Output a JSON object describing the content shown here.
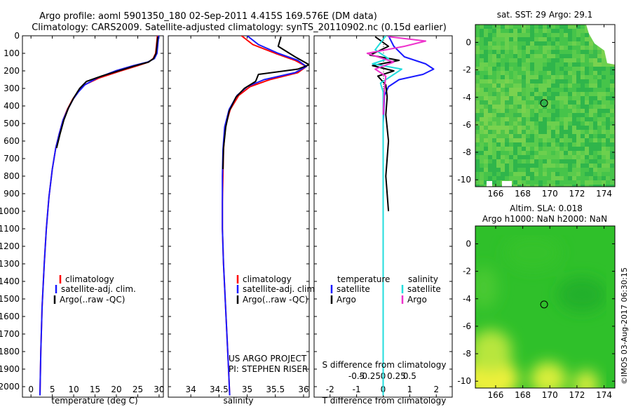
{
  "header": {
    "title_line1": "Argo profile: aoml 5901350_180 02-Sep-2011 4.415S 169.576E (DM data)",
    "title_line2": "Climatology: CARS2009. Satellite-adjusted climatology: synTS_20110902.nc (0.15d earlier)"
  },
  "colors": {
    "climatology": "#ff0000",
    "satellite": "#1a1aff",
    "argo": "#000000",
    "satellite_salinity": "#22dddd",
    "argo_salinity": "#ee33cc"
  },
  "depth_axis": {
    "min": 0,
    "max": 2060,
    "ticks": [
      0,
      100,
      200,
      300,
      400,
      500,
      600,
      700,
      800,
      900,
      1000,
      1100,
      1200,
      1300,
      1400,
      1500,
      1600,
      1700,
      1800,
      1900,
      2000
    ]
  },
  "legend": {
    "climatology": "climatology",
    "satellite_adj": "satellite-adj. clim.",
    "argo_raw": "Argo(..raw -QC)"
  },
  "diff_legend": {
    "temperature": "temperature",
    "salinity": "salinity",
    "satellite": "satellite",
    "argo": "Argo"
  },
  "project": {
    "line1": "US ARGO PROJECT",
    "line2": "PI: STEPHEN RISER"
  },
  "chart_data": [
    {
      "type": "line",
      "name": "temperature-profile",
      "xlabel": "temperature (deg C)",
      "xlim": [
        -2,
        31
      ],
      "xticks": [
        0,
        5,
        10,
        15,
        20,
        25,
        30
      ],
      "ylim": [
        2060,
        0
      ],
      "series": [
        {
          "name": "climatology",
          "color": "#ff0000",
          "x": [
            29.6,
            29.4,
            29.2,
            28.6,
            27.5,
            25,
            21,
            16,
            12.5,
            11,
            9.8,
            8.5,
            7.5,
            6.6,
            5.8,
            5,
            4.2,
            3.6,
            3.1,
            2.6,
            2.3,
            2.1
          ],
          "y": [
            0,
            50,
            100,
            130,
            150,
            170,
            200,
            240,
            280,
            320,
            360,
            420,
            480,
            560,
            640,
            760,
            920,
            1100,
            1300,
            1550,
            1800,
            2050
          ]
        },
        {
          "name": "satellite-adj. clim.",
          "color": "#1a1aff",
          "x": [
            29.9,
            29.7,
            29.5,
            28.9,
            27.3,
            24,
            19.8,
            15.5,
            12.6,
            11.1,
            9.9,
            8.6,
            7.5,
            6.6,
            5.8,
            5,
            4.2,
            3.6,
            3.1,
            2.6,
            2.3,
            2.1
          ],
          "y": [
            0,
            50,
            100,
            130,
            150,
            170,
            200,
            240,
            280,
            320,
            360,
            420,
            480,
            560,
            640,
            760,
            920,
            1100,
            1300,
            1550,
            1800,
            2050
          ]
        },
        {
          "name": "Argo(..raw -QC)",
          "color": "#000000",
          "x": [
            29.7,
            29.5,
            29.3,
            28.7,
            27.5,
            24.5,
            20.5,
            16.5,
            13,
            11.4,
            10.1,
            8.8,
            7.7,
            6.8,
            6
          ],
          "y": [
            5,
            50,
            100,
            130,
            150,
            170,
            200,
            230,
            260,
            300,
            350,
            410,
            480,
            560,
            640
          ]
        }
      ]
    },
    {
      "type": "line",
      "name": "salinity-profile",
      "xlabel": "salinity",
      "xlim": [
        33.6,
        36.1
      ],
      "xticks": [
        34,
        34.5,
        35,
        35.5,
        36
      ],
      "ylim": [
        2060,
        0
      ],
      "series": [
        {
          "name": "climatology",
          "color": "#ff0000",
          "x": [
            34.9,
            35.1,
            35.5,
            35.85,
            36.05,
            35.9,
            35.4,
            35.05,
            34.85,
            34.7,
            34.61,
            34.58,
            34.57,
            34.56,
            34.56,
            34.58,
            34.61,
            34.64,
            34.67,
            34.69
          ],
          "y": [
            0,
            50,
            100,
            140,
            175,
            210,
            250,
            290,
            340,
            420,
            520,
            650,
            800,
            950,
            1100,
            1300,
            1500,
            1700,
            1900,
            2050
          ]
        },
        {
          "name": "satellite-adj. clim.",
          "color": "#1a1aff",
          "x": [
            35.0,
            35.2,
            35.55,
            35.9,
            36.05,
            35.85,
            35.3,
            35.0,
            34.82,
            34.68,
            34.6,
            34.57,
            34.56,
            34.56,
            34.56,
            34.58,
            34.61,
            34.64,
            34.67,
            34.69
          ],
          "y": [
            0,
            50,
            100,
            140,
            175,
            210,
            250,
            290,
            340,
            420,
            520,
            650,
            800,
            950,
            1100,
            1300,
            1500,
            1700,
            1900,
            2050
          ]
        },
        {
          "name": "Argo(..raw -QC)",
          "color": "#000000",
          "x": [
            35.6,
            35.55,
            35.85,
            36.1,
            35.9,
            35.2,
            35.15,
            34.95,
            34.8,
            34.68,
            34.62,
            34.58,
            34.57
          ],
          "y": [
            5,
            60,
            120,
            165,
            190,
            220,
            260,
            300,
            350,
            430,
            520,
            640,
            760
          ]
        }
      ]
    },
    {
      "type": "line",
      "name": "difference-profile",
      "xlabel": "T difference from climatology",
      "x2label": "S difference from climatology",
      "xlim": [
        -2.6,
        2.6
      ],
      "xticks": [
        -2,
        -1,
        0,
        1,
        2
      ],
      "s_ticks": [
        -0.5,
        -0.25,
        0,
        0.25,
        0.5
      ],
      "s_tick_labels": [
        "-0.5",
        "-0.25",
        "0",
        "0.25",
        "0.5"
      ],
      "ylim": [
        2060,
        0
      ],
      "series": [
        {
          "name": "temperature satellite",
          "color": "#1a1aff",
          "x": [
            0.2,
            0.4,
            0.8,
            1.6,
            1.9,
            1.5,
            0.6,
            0.2,
            0.05,
            0,
            0,
            0,
            0,
            0
          ],
          "y": [
            0,
            60,
            120,
            160,
            190,
            220,
            250,
            290,
            340,
            500,
            800,
            1200,
            1600,
            2050
          ]
        },
        {
          "name": "temperature Argo",
          "color": "#000000",
          "x": [
            -0.3,
            0.2,
            -0.5,
            0.6,
            -0.4,
            0.4,
            -0.2,
            0.1,
            0.15,
            0.1,
            0.2,
            0.1,
            0.2
          ],
          "y": [
            5,
            60,
            110,
            140,
            170,
            200,
            230,
            280,
            350,
            450,
            600,
            800,
            1000
          ]
        },
        {
          "name": "salinity satellite",
          "color": "#22dddd",
          "x": [
            0.1,
            -0.3,
            0.2,
            -0.4,
            0.7,
            0.3,
            -0.1,
            0,
            0,
            0,
            0
          ],
          "y": [
            0,
            80,
            130,
            160,
            190,
            230,
            270,
            320,
            500,
            1000,
            2050
          ]
        },
        {
          "name": "salinity Argo",
          "color": "#ee33cc",
          "x": [
            0.2,
            1.6,
            0.8,
            -0.6,
            0.4,
            -0.3,
            0.1,
            0.05,
            0
          ],
          "y": [
            5,
            30,
            60,
            100,
            150,
            190,
            230,
            300,
            450
          ]
        }
      ]
    },
    {
      "type": "heatmap",
      "name": "sst-map",
      "title": "sat. SST: 29 Argo: 29.1",
      "xlim": [
        164.5,
        174.8
      ],
      "ylim": [
        -10.5,
        1.3
      ],
      "xticks": [
        166,
        168,
        170,
        172,
        174
      ],
      "yticks": [
        0,
        -2,
        -4,
        -6,
        -8,
        -10
      ],
      "marker": {
        "lon": 169.576,
        "lat": -4.415
      }
    },
    {
      "type": "heatmap",
      "name": "sla-map",
      "title_line1": "Altim. SLA: 0.018",
      "title_line2": "Argo h1000: NaN h2000: NaN",
      "xlim": [
        164.5,
        174.8
      ],
      "ylim": [
        -10.5,
        1.3
      ],
      "xticks": [
        166,
        168,
        170,
        172,
        174
      ],
      "yticks": [
        0,
        -2,
        -4,
        -6,
        -8,
        -10
      ],
      "marker": {
        "lon": 169.576,
        "lat": -4.415
      }
    }
  ],
  "footer": {
    "stamp": "©IMOS 03-Aug-2017 06:30:15"
  }
}
